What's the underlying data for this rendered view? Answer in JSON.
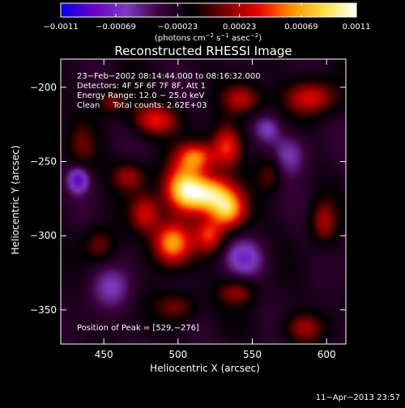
{
  "chart_data": {
    "type": "heatmap",
    "title": "Reconstructed RHESSI Image",
    "xlabel": "Heliocentric X (arcsec)",
    "ylabel": "Heliocentric Y (arcsec)",
    "xlim": [
      421,
      613
    ],
    "ylim": [
      -373,
      -181
    ],
    "x_ticks": [
      450,
      500,
      550,
      600
    ],
    "x_tick_labels": [
      "450",
      "500",
      "550",
      "600"
    ],
    "y_ticks": [
      -200,
      -250,
      -300,
      -350
    ],
    "y_tick_labels": [
      "−200",
      "−250",
      "−300",
      "−350"
    ],
    "colorbar": {
      "range": [
        -0.0011,
        0.0011
      ],
      "tick_values": [
        -0.0011,
        -0.00069,
        -0.00023,
        0.00023,
        0.00069,
        0.0011
      ],
      "tick_labels": [
        "−0.0011",
        "−0.00069",
        "−0.00023",
        "0.00023",
        "0.00069",
        "0.0011"
      ],
      "unit_text": "(photons cm",
      "unit_exp1": "−2",
      "unit_mid": " s",
      "unit_exp2": "−1",
      "unit_mid2": " asec",
      "unit_exp3": "−2",
      "unit_end": ")",
      "colors": [
        "#0000e6",
        "#6a00c8",
        "#7a3cbe",
        "#3a003a",
        "#000000",
        "#7a0000",
        "#e60000",
        "#ff8c00",
        "#ffe040",
        "#ffffff"
      ]
    },
    "annotations": [
      "23−Feb−2002 08:14:44.000 to 08:16:32.000",
      "Detectors: 4F 5F 6F 7F 8F, Att 1",
      "Energy Range: 12.0 − 25.0 keV",
      "Clean     Total counts: 2.62E+03"
    ],
    "peak_label": "Position of Peak = [529,−276]",
    "peak_position": [
      529,
      -276
    ],
    "sources": [
      {
        "x": 520,
        "y": -272,
        "sx": 11,
        "sy": 9,
        "amp": 1.0
      },
      {
        "x": 503,
        "y": -268,
        "sx": 9,
        "sy": 11,
        "amp": 0.85
      },
      {
        "x": 534,
        "y": -283,
        "sx": 8,
        "sy": 9,
        "amp": 0.8
      },
      {
        "x": 512,
        "y": -247,
        "sx": 9,
        "sy": 7,
        "amp": 0.7
      },
      {
        "x": 533,
        "y": -240,
        "sx": 7,
        "sy": 10,
        "amp": 0.6
      },
      {
        "x": 496,
        "y": -305,
        "sx": 9,
        "sy": 10,
        "amp": 0.85
      },
      {
        "x": 521,
        "y": -300,
        "sx": 7,
        "sy": 8,
        "amp": 0.55
      },
      {
        "x": 478,
        "y": -285,
        "sx": 7,
        "sy": 9,
        "amp": 0.5
      },
      {
        "x": 467,
        "y": -260,
        "sx": 8,
        "sy": 7,
        "amp": 0.4
      },
      {
        "x": 485,
        "y": -222,
        "sx": 11,
        "sy": 7,
        "amp": 0.55
      },
      {
        "x": 543,
        "y": -208,
        "sx": 9,
        "sy": 7,
        "amp": 0.45
      },
      {
        "x": 455,
        "y": -210,
        "sx": 7,
        "sy": 6,
        "amp": 0.35
      },
      {
        "x": 589,
        "y": -207,
        "sx": 12,
        "sy": 8,
        "amp": 0.55
      },
      {
        "x": 598,
        "y": -291,
        "sx": 6,
        "sy": 10,
        "amp": 0.4
      },
      {
        "x": 585,
        "y": -362,
        "sx": 9,
        "sy": 7,
        "amp": 0.4
      },
      {
        "x": 540,
        "y": -338,
        "sx": 9,
        "sy": 6,
        "amp": 0.35
      },
      {
        "x": 500,
        "y": -348,
        "sx": 10,
        "sy": 7,
        "amp": 0.35
      },
      {
        "x": 447,
        "y": -306,
        "sx": 7,
        "sy": 8,
        "amp": 0.3
      },
      {
        "x": 562,
        "y": -258,
        "sx": 6,
        "sy": 9,
        "amp": 0.3
      },
      {
        "x": 435,
        "y": -240,
        "sx": 7,
        "sy": 12,
        "amp": 0.22
      },
      {
        "x": 433,
        "y": -262,
        "sx": 5,
        "sy": 6,
        "amp": -0.55
      },
      {
        "x": 545,
        "y": -315,
        "sx": 10,
        "sy": 9,
        "amp": -0.35
      },
      {
        "x": 575,
        "y": -245,
        "sx": 9,
        "sy": 10,
        "amp": -0.35
      },
      {
        "x": 560,
        "y": -228,
        "sx": 6,
        "sy": 6,
        "amp": -0.3
      },
      {
        "x": 455,
        "y": -335,
        "sx": 10,
        "sy": 10,
        "amp": -0.3
      }
    ]
  },
  "footer": {
    "timestamp": "11−Apr−2013 23:57"
  }
}
